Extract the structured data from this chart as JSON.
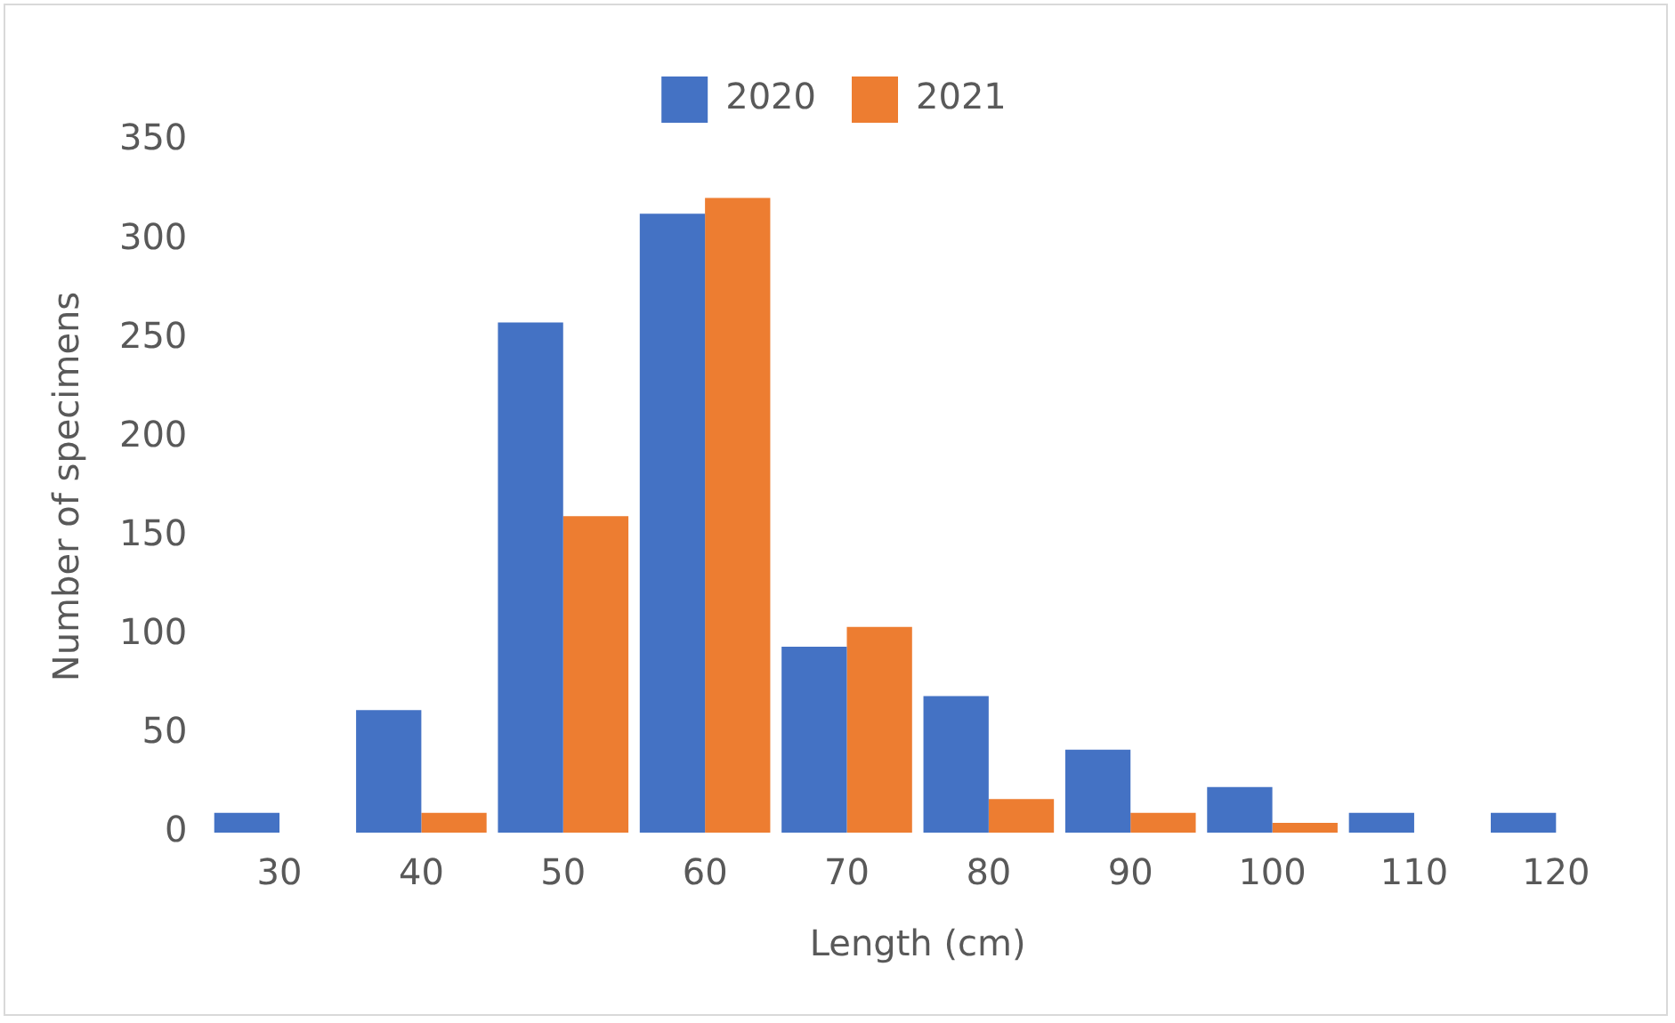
{
  "chart_data": {
    "type": "bar",
    "xlabel": "Length (cm)",
    "ylabel": "Number of specimens",
    "categories": [
      "30",
      "40",
      "50",
      "60",
      "70",
      "80",
      "90",
      "100",
      "110",
      "120"
    ],
    "series": [
      {
        "name": "2020",
        "color": "#4472c4",
        "values": [
          10,
          62,
          258,
          313,
          94,
          69,
          42,
          23,
          10,
          10
        ]
      },
      {
        "name": "2021",
        "color": "#ed7d31",
        "values": [
          null,
          10,
          160,
          321,
          104,
          17,
          10,
          5,
          null,
          null
        ]
      }
    ],
    "ylim": [
      0,
      350
    ],
    "yticks": [
      0,
      50,
      100,
      150,
      200,
      250,
      300,
      350
    ],
    "grid": false,
    "legend": "top"
  }
}
